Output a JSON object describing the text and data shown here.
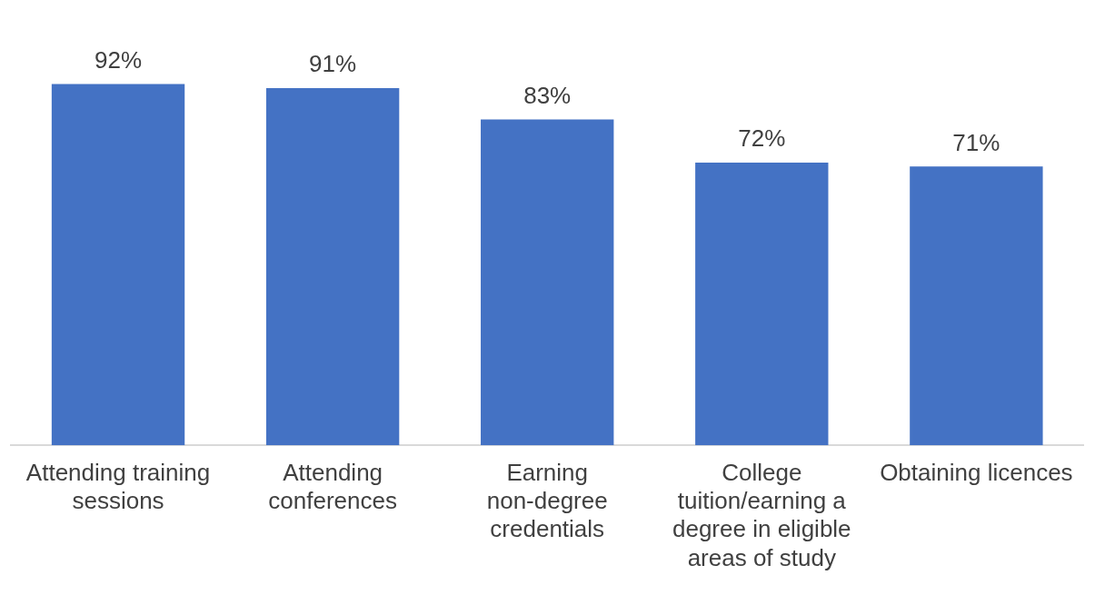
{
  "chart_data": {
    "type": "bar",
    "categories": [
      "Attending training sessions",
      "Attending conferences",
      "Earning non-degree credentials",
      "College tuition/earning a degree in eligible areas of study",
      "Obtaining licences"
    ],
    "values": [
      92,
      91,
      83,
      72,
      71
    ],
    "color": "#4472c4",
    "data_labels": true,
    "value_labels": [
      "92%",
      "91%",
      "83%",
      "72%",
      "71%"
    ],
    "grid": false,
    "legend": false
  }
}
